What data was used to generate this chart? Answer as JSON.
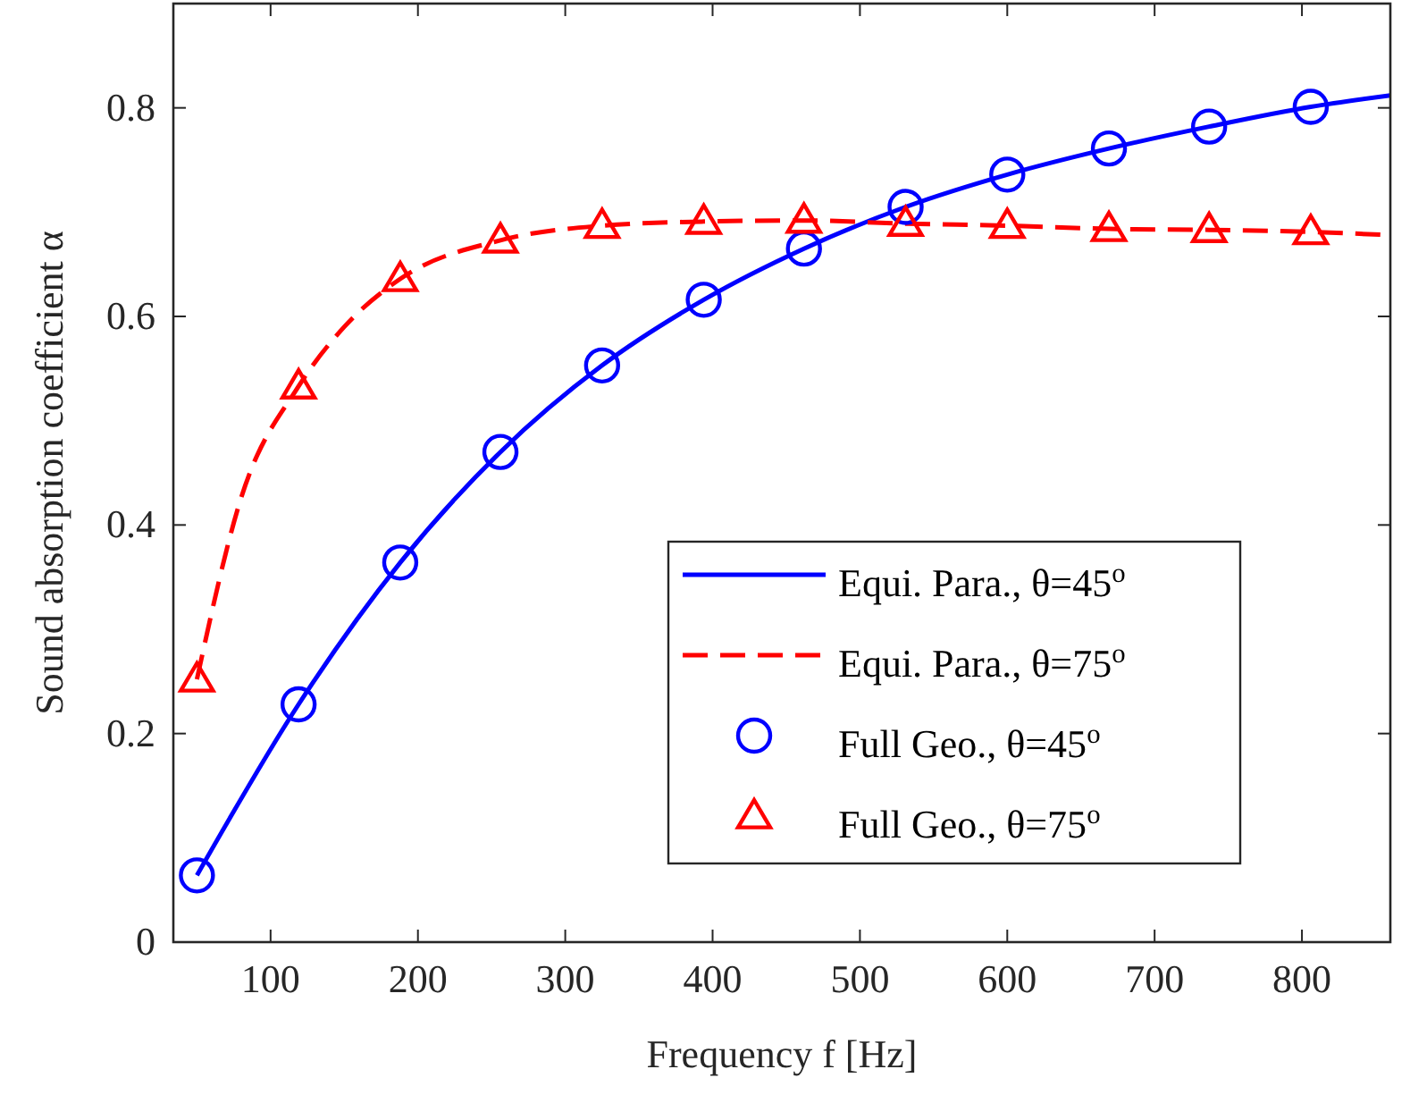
{
  "chart_data": {
    "type": "line",
    "xlabel": "Frequency f [Hz]",
    "ylabel": "Sound absorption coefficient α",
    "xlim": [
      34,
      860
    ],
    "ylim": [
      0,
      0.9
    ],
    "xticks": [
      100,
      200,
      300,
      400,
      500,
      600,
      700,
      800
    ],
    "yticks": [
      0,
      0.2,
      0.4,
      0.6,
      0.8
    ],
    "grid": false,
    "legend": "bottom right",
    "series": [
      {
        "name": "Equi. Para., θ=45$^{o}$",
        "color": "#0000ff",
        "line_style": "solid",
        "marker": "none",
        "x": [
          50,
          119,
          188,
          256,
          325,
          394,
          462,
          531,
          600,
          669,
          737,
          806,
          860
        ],
        "values": [
          0.064,
          0.228,
          0.364,
          0.47,
          0.553,
          0.616,
          0.665,
          0.705,
          0.736,
          0.761,
          0.782,
          0.801,
          0.812
        ]
      },
      {
        "name": "Equi. Para., θ=75$^{o}$",
        "color": "#ff0000",
        "line_style": "dashed",
        "marker": "none",
        "x": [
          50,
          80,
          119,
          150,
          188,
          256,
          325,
          394,
          462,
          531,
          600,
          669,
          737,
          806,
          860
        ],
        "values": [
          0.252,
          0.426,
          0.533,
          0.59,
          0.636,
          0.673,
          0.687,
          0.691,
          0.692,
          0.689,
          0.687,
          0.684,
          0.683,
          0.681,
          0.678
        ]
      },
      {
        "name": "Full Geo., θ=45$^{o}$",
        "type": "scatter",
        "color": "#0000ff",
        "marker": "circle",
        "x": [
          50,
          119,
          188,
          256,
          325,
          394,
          462,
          531,
          600,
          669,
          737,
          806
        ],
        "values": [
          0.064,
          0.228,
          0.364,
          0.47,
          0.553,
          0.616,
          0.665,
          0.705,
          0.736,
          0.761,
          0.782,
          0.801
        ]
      },
      {
        "name": "Full Geo., θ=75$^{o}$",
        "type": "scatter",
        "color": "#ff0000",
        "marker": "triangle",
        "x": [
          50,
          119,
          188,
          256,
          325,
          394,
          462,
          531,
          600,
          669,
          737,
          806
        ],
        "values": [
          0.252,
          0.533,
          0.636,
          0.673,
          0.687,
          0.691,
          0.692,
          0.689,
          0.687,
          0.684,
          0.683,
          0.681
        ]
      }
    ]
  }
}
